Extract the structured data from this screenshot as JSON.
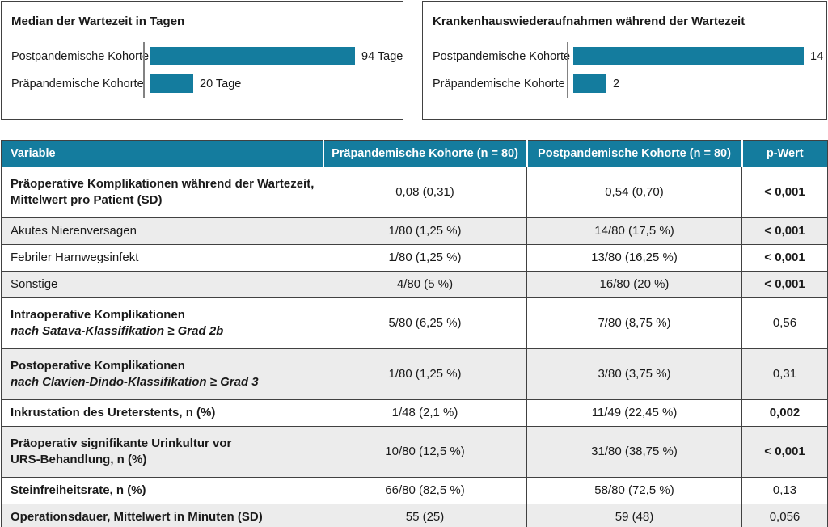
{
  "colors": {
    "accent": "#147c9e",
    "stripe": "#ececec",
    "border": "#414141",
    "text": "#1a1a1a",
    "axis": "#828282",
    "header_text": "#ffffff"
  },
  "chart_data": [
    {
      "type": "bar",
      "orientation": "horizontal",
      "title": "Median der Wartezeit in Tagen",
      "categories": [
        "Postpandemische Kohorte",
        "Präpandemische Kohorte"
      ],
      "values": [
        94,
        20
      ],
      "value_labels": [
        "94 Tage",
        "20 Tage"
      ],
      "unit": "Tage",
      "xlim": [
        0,
        100
      ],
      "grid": false,
      "legend": false
    },
    {
      "type": "bar",
      "orientation": "horizontal",
      "title": "Krankenhauswiederaufnahmen während der Wartezeit",
      "categories": [
        "Postpandemische Kohorte",
        "Präpandemische Kohorte"
      ],
      "values": [
        14,
        2
      ],
      "value_labels": [
        "14",
        "2"
      ],
      "unit": "",
      "xlim": [
        0,
        15
      ],
      "grid": false,
      "legend": false
    }
  ],
  "table": {
    "col_headers": [
      "Variable",
      "Präpandemische Kohorte (n = 80)",
      "Postpandemische Kohorte (n = 80)",
      "p-Wert"
    ],
    "rows": [
      {
        "label": "Präoperative Komplikationen während der Wartezeit,",
        "label2": "Mittelwert pro Patient (SD)",
        "pre": "0,08 (0,31)",
        "post": "0,54 (0,70)",
        "p": "< 0,001"
      },
      {
        "label": "Akutes Nierenversagen",
        "pre": "1/80 (1,25 %)",
        "post": "14/80 (17,5 %)",
        "p": "< 0,001"
      },
      {
        "label": "Febriler Harnwegsinfekt",
        "pre": "1/80 (1,25 %)",
        "post": "13/80 (16,25 %)",
        "p": "< 0,001"
      },
      {
        "label": "Sonstige",
        "pre": "4/80 (5 %)",
        "post": "16/80 (20 %)",
        "p": "< 0,001"
      },
      {
        "label": "Intraoperative Komplikationen",
        "label2": "nach Satava-Klassifikation ≥ Grad 2b",
        "pre": "5/80 (6,25 %)",
        "post": "7/80 (8,75 %)",
        "p": "0,56"
      },
      {
        "label": "Postoperative Komplikationen",
        "label2": "nach Clavien-Dindo-Klassifikation ≥ Grad 3",
        "pre": "1/80 (1,25 %)",
        "post": "3/80 (3,75 %)",
        "p": "0,31"
      },
      {
        "label": "Inkrustation des Ureterstents, n (%)",
        "pre": "1/48 (2,1 %)",
        "post": "11/49 (22,45 %)",
        "p": "0,002"
      },
      {
        "label": "Präoperativ signifikante Urinkultur vor",
        "label2": "URS-Behandlung, n (%)",
        "pre": "10/80 (12,5 %)",
        "post": "31/80 (38,75 %)",
        "p": "< 0,001"
      },
      {
        "label": "Steinfreiheitsrate, n (%)",
        "pre": "66/80 (82,5 %)",
        "post": "58/80 (72,5 %)",
        "p": "0,13"
      },
      {
        "label": "Operationsdauer, Mittelwert in Minuten (SD)",
        "pre": "55 (25)",
        "post": "59 (48)",
        "p": "0,056"
      }
    ]
  }
}
